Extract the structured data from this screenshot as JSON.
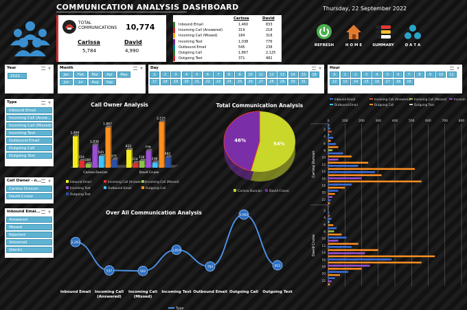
{
  "header": {
    "title": "COMMUNICATION ANALYSIS DASHBOARD",
    "date": "Thursday, 22 September 2022"
  },
  "kpi": {
    "label_line1": "TOTAL",
    "label_line2": "COMMUNICATIONS",
    "total": "10,774",
    "p1_name": "Carissa",
    "p1_val": "5,784",
    "p2_name": "David",
    "p2_val": "4,990"
  },
  "table": {
    "h1": "Carissa",
    "h2": "David",
    "rows": [
      {
        "label": "Inbound Email",
        "a": "1,460",
        "b": "833"
      },
      {
        "label": "Incoming Call (Answered)",
        "a": "319",
        "b": "218"
      },
      {
        "label": "Incoming Call (Missed)",
        "a": "184",
        "b": "318"
      },
      {
        "label": "Incoming Text",
        "a": "1,038",
        "b": "776"
      },
      {
        "label": "Outbound Email",
        "a": "545",
        "b": "238"
      },
      {
        "label": "Outgoing Call",
        "a": "1,867",
        "b": "2,125"
      },
      {
        "label": "Outgoing Text",
        "a": "371",
        "b": "482"
      }
    ],
    "colors": [
      "#2e7d32",
      "#c62828",
      "#f9a825",
      "#7b1fa2",
      "#00838f",
      "#2e7d32",
      "#c62828"
    ]
  },
  "nav": [
    {
      "label": "REFRESH",
      "icon": "refresh-icon"
    },
    {
      "label": "H O M E",
      "icon": "home-icon"
    },
    {
      "label": "SUMMARY",
      "icon": "summary-icon"
    },
    {
      "label": "D A T A",
      "icon": "data-icon"
    }
  ],
  "slicers": {
    "year": {
      "title": "Year",
      "items": [
        "2022"
      ]
    },
    "month": {
      "title": "Month",
      "items": [
        "Jan",
        "Feb",
        "Mar",
        "Apr",
        "May",
        "Jun",
        "Jul",
        "Aug",
        "Sep"
      ]
    },
    "day": {
      "title": "Day",
      "items": [
        "1",
        "2",
        "3",
        "4",
        "5",
        "6",
        "7",
        "8",
        "9",
        "10",
        "11",
        "12",
        "13",
        "14",
        "15",
        "16",
        "17",
        "18",
        "19",
        "20",
        "21",
        "22",
        "23",
        "24",
        "25",
        "26",
        "27",
        "28",
        "29",
        "30",
        "31"
      ]
    },
    "hour": {
      "title": "Hour",
      "items": [
        "0",
        "1",
        "2",
        "3",
        "4",
        "5",
        "6",
        "7",
        "8",
        "9",
        "10",
        "11",
        "12",
        "13",
        "14",
        "15",
        "16",
        "17",
        "18",
        "19"
      ]
    },
    "type": {
      "title": "Type",
      "items": [
        "Inbound Email",
        "Incoming Call (Answ...",
        "Incoming Call (Missed)",
        "Incoming Text",
        "Outbound Email",
        "Outgoing Call",
        "Outgoing Text"
      ]
    },
    "owner": {
      "title": "Call Owner - n...",
      "items": [
        "Carissa Duncan",
        "David Cruise"
      ]
    },
    "inbound": {
      "title": "Inbound Emai...",
      "items": [
        "Answered",
        "Missed",
        "Rejected",
        "Voicemail",
        "(blank)"
      ]
    }
  },
  "chart_data": [
    {
      "type": "bar",
      "title": "Call Owner Analysis",
      "categories": [
        "Carissa Duncan",
        "David Cruise"
      ],
      "series": [
        {
          "name": "Inbound Email",
          "values": [
            1460,
            833
          ],
          "color": "#f5ec1f"
        },
        {
          "name": "Incoming Call (Answered)",
          "values": [
            319,
            218
          ],
          "color": "#e03030"
        },
        {
          "name": "Incoming Call (Missed)",
          "values": [
            184,
            318
          ],
          "color": "#8bc34a"
        },
        {
          "name": "Incoming Text",
          "values": [
            1038,
            776
          ],
          "color": "#9c4fd6"
        },
        {
          "name": "Outbound Email",
          "values": [
            545,
            238
          ],
          "color": "#40c4ff"
        },
        {
          "name": "Outgoing Call",
          "values": [
            1867,
            2125
          ],
          "color": "#ff8f1f"
        },
        {
          "name": "Outgoing Text",
          "values": [
            371,
            482
          ],
          "color": "#2a4fa8"
        }
      ],
      "labels": [
        [
          "1,460",
          "319",
          "184",
          "1,038",
          "545",
          "1,867",
          "371"
        ],
        [
          "833",
          "218",
          "318",
          "776",
          "238",
          "2,125",
          "482"
        ]
      ],
      "legend": "bottom"
    },
    {
      "type": "pie",
      "title": "Total Communication Analysis",
      "categories": [
        "Carissa Duncan",
        "David Cruise"
      ],
      "values": [
        54,
        46
      ],
      "labels": [
        "54%",
        "46%"
      ],
      "colors": [
        "#c9d62a",
        "#7a2ea8"
      ],
      "legend": "bottom"
    },
    {
      "type": "line",
      "title": "Over All Communication Analysis",
      "categories": [
        "Inbound Email",
        "Incoming Call (Answered)",
        "Incoming Call (Missed)",
        "Incoming Text",
        "Outbound Email",
        "Outgoing Call",
        "Outgoing Text"
      ],
      "category_lines": [
        [
          "Inbound Email"
        ],
        [
          "Incoming Call",
          "(Answered)"
        ],
        [
          "Incoming Call",
          "(Missed)"
        ],
        [
          "Incoming Text"
        ],
        [
          "Outbound Email"
        ],
        [
          "Outgoing Call"
        ],
        [
          "Outgoing Text"
        ]
      ],
      "series": [
        {
          "name": "Type",
          "values": [
            2293,
            537,
            502,
            1814,
            783,
            3992,
            853
          ]
        }
      ],
      "labels": [
        "2,293",
        "537",
        "502",
        "1,814",
        "783",
        "3,992",
        "853"
      ],
      "legend": "bottom"
    },
    {
      "type": "bar",
      "orientation": "horizontal",
      "legend": [
        "Inbound Email",
        "Incoming Call (Answered)",
        "Incoming Call (Missed)",
        "Incoming Text",
        "Outbound Email",
        "Outgoing Call",
        "Outgoing Text"
      ],
      "legend_colors": [
        "#3b6fe0",
        "#e05030",
        "#9bc34a",
        "#9c4fd6",
        "#40c4ff",
        "#ff8f1f",
        "#d0d0d0"
      ],
      "xticks": [
        "0",
        "100",
        "200",
        "300",
        "400",
        "500",
        "600",
        "700",
        "800"
      ],
      "xlim": [
        0,
        800
      ],
      "groups": [
        {
          "name": "Carissa Duncan",
          "ticks": [
            "2",
            "4",
            "6",
            "8",
            "10",
            "12",
            "14",
            "16",
            "18",
            "20",
            "22"
          ]
        },
        {
          "name": "David Cruise",
          "ticks": [
            "2",
            "4",
            "6",
            "8",
            "10",
            "12",
            "14",
            "16",
            "18",
            "20",
            "22"
          ]
        }
      ],
      "bars": [
        [
          8,
          "#3b6fe0",
          0
        ],
        [
          12,
          "#3b6fe0",
          1
        ],
        [
          20,
          "#e05030",
          2
        ],
        [
          6,
          "#40c4ff",
          3
        ],
        [
          30,
          "#3b6fe0",
          4
        ],
        [
          15,
          "#ff8f1f",
          5
        ],
        [
          45,
          "#3b6fe0",
          6
        ],
        [
          60,
          "#ff8f1f",
          7
        ],
        [
          25,
          "#9bc34a",
          8
        ],
        [
          90,
          "#3b6fe0",
          9
        ],
        [
          140,
          "#ff8f1f",
          10
        ],
        [
          60,
          "#9c4fd6",
          11
        ],
        [
          240,
          "#ff8f1f",
          12
        ],
        [
          180,
          "#3b6fe0",
          13
        ],
        [
          520,
          "#ff8f1f",
          14
        ],
        [
          280,
          "#3b6fe0",
          15
        ],
        [
          320,
          "#ff8f1f",
          16
        ],
        [
          200,
          "#9c4fd6",
          17
        ],
        [
          560,
          "#ff8f1f",
          18
        ],
        [
          140,
          "#3b6fe0",
          19
        ],
        [
          100,
          "#ff8f1f",
          20
        ],
        [
          60,
          "#3b6fe0",
          21
        ],
        [
          40,
          "#ff8f1f",
          22
        ],
        [
          25,
          "#9c4fd6",
          23
        ],
        [
          15,
          "#3b6fe0",
          24
        ],
        [
          10,
          "#ff8f1f",
          25
        ],
        [
          6,
          "#3b6fe0",
          28
        ],
        [
          10,
          "#e05030",
          29
        ],
        [
          20,
          "#3b6fe0",
          30
        ],
        [
          8,
          "#40c4ff",
          31
        ],
        [
          30,
          "#ff8f1f",
          32
        ],
        [
          50,
          "#3b6fe0",
          33
        ],
        [
          35,
          "#9bc34a",
          34
        ],
        [
          80,
          "#ff8f1f",
          35
        ],
        [
          110,
          "#3b6fe0",
          36
        ],
        [
          60,
          "#9c4fd6",
          37
        ],
        [
          180,
          "#ff8f1f",
          38
        ],
        [
          140,
          "#3b6fe0",
          39
        ],
        [
          300,
          "#ff8f1f",
          40
        ],
        [
          220,
          "#9c4fd6",
          41
        ],
        [
          640,
          "#ff8f1f",
          42
        ],
        [
          380,
          "#3b6fe0",
          43
        ],
        [
          560,
          "#ff8f1f",
          44
        ],
        [
          250,
          "#9c4fd6",
          45
        ],
        [
          200,
          "#ff8f1f",
          46
        ],
        [
          120,
          "#3b6fe0",
          47
        ],
        [
          70,
          "#ff8f1f",
          48
        ],
        [
          40,
          "#3b6fe0",
          49
        ],
        [
          20,
          "#9c4fd6",
          50
        ],
        [
          10,
          "#ff8f1f",
          51
        ]
      ]
    }
  ]
}
